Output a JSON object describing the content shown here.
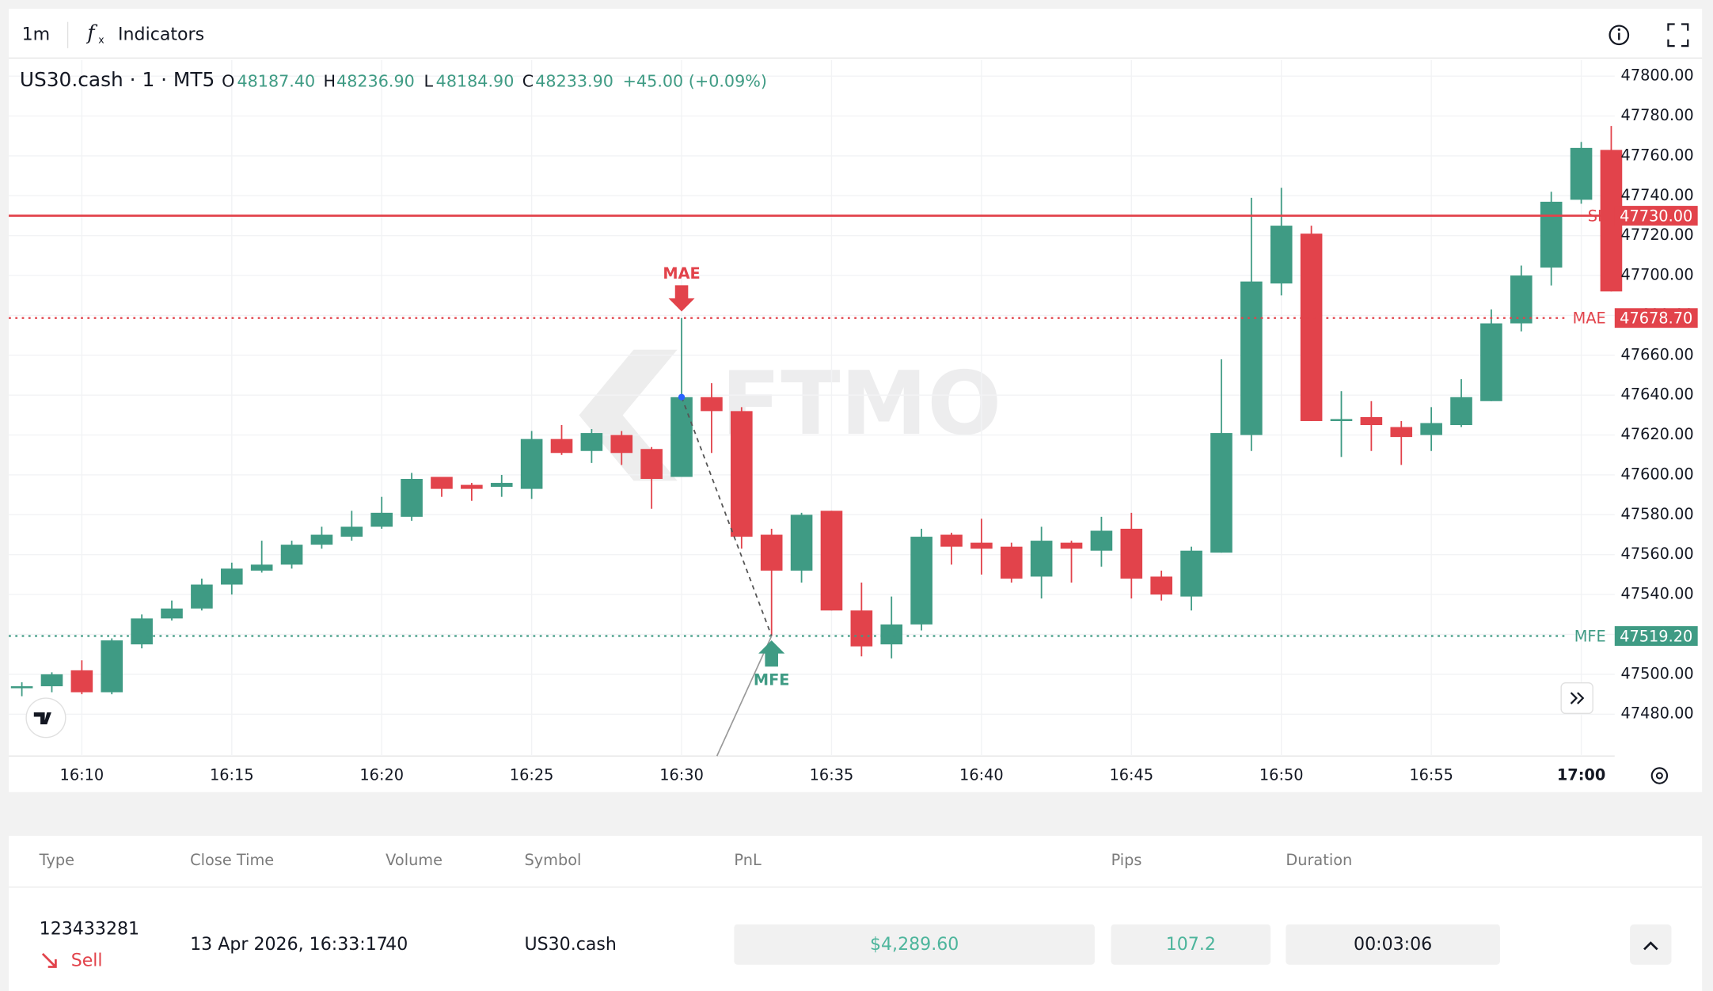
{
  "toolbar": {
    "interval": "1m",
    "indicators": "Indicators"
  },
  "legend": {
    "symbol": "US30.cash · 1 · MT5",
    "o_label": "O",
    "open": "48187.40",
    "h_label": "H",
    "high": "48236.90",
    "l_label": "L",
    "low": "48184.90",
    "c_label": "C",
    "close": "48233.90",
    "change": "+45.00 (+0.09%)"
  },
  "watermark": "FTMO",
  "chart_data": {
    "type": "candlestick",
    "categories": [
      null,
      null,
      "16:10",
      null,
      null,
      null,
      null,
      "16:15",
      null,
      null,
      null,
      null,
      "16:20",
      null,
      null,
      null,
      null,
      "16:25",
      null,
      null,
      null,
      null,
      "16:30",
      null,
      null,
      null,
      null,
      "16:35",
      null,
      null,
      null,
      null,
      "16:40",
      null,
      null,
      null,
      null,
      "16:45",
      null,
      null,
      null,
      null,
      "16:50",
      null,
      null,
      null,
      null,
      "16:55",
      null,
      null,
      null,
      null,
      "17:00",
      null
    ],
    "series": [
      {
        "up_color": "#3f9b84",
        "down_color": "#e2434b",
        "open": [
          47493,
          47494,
          47502,
          47491,
          47515,
          47528,
          47533,
          47545,
          47552,
          47555,
          47565,
          47569,
          47574,
          47579,
          47599,
          47595,
          47594,
          47593,
          47618,
          47612,
          47620,
          47613,
          47599,
          47639,
          47632,
          47570,
          47552,
          47582,
          47532,
          47515,
          47525,
          47570,
          47566,
          47564,
          47549,
          47566,
          47562,
          47573,
          47549,
          47539,
          47561,
          47620,
          47696,
          47721,
          47627,
          47629,
          47624,
          47620,
          47625,
          47637,
          47676,
          47704,
          47738,
          47763
        ],
        "high": [
          47496,
          47501,
          47507,
          47518,
          47530,
          47537,
          47548,
          47556,
          47567,
          47567,
          47574,
          47582,
          47589,
          47601,
          47599,
          47596,
          47600,
          47622,
          47625,
          47623,
          47622,
          47614,
          47678.7,
          47646,
          47634,
          47573,
          47581,
          47582,
          47546,
          47539,
          47573,
          47571,
          47578,
          47566,
          47574,
          47567,
          47579,
          47581,
          47552,
          47564,
          47658,
          47739,
          47744,
          47725,
          47642,
          47637,
          47627,
          47634,
          47648,
          47683,
          47705,
          47742,
          47767,
          47775
        ],
        "low": [
          47489,
          47491,
          47490,
          47490,
          47513,
          47527,
          47532,
          47540,
          47551,
          47553,
          47563,
          47567,
          47573,
          47577,
          47589,
          47587,
          47589,
          47588,
          47610,
          47606,
          47605,
          47583,
          47599,
          47611,
          47563,
          47519.2,
          47546,
          47532,
          47509,
          47508,
          47522,
          47555,
          47550,
          47546,
          47538,
          47546,
          47554,
          47538,
          47537,
          47532,
          47561,
          47612,
          47690,
          47627,
          47609,
          47612,
          47605,
          47612,
          47624,
          47637,
          47672,
          47695,
          47736,
          47692
        ],
        "close": [
          47494,
          47500,
          47491,
          47517,
          47528,
          47533,
          47545,
          47553,
          47555,
          47565,
          47570,
          47574,
          47581,
          47598,
          47593,
          47593,
          47596,
          47618,
          47611,
          47621,
          47611,
          47598,
          47639,
          47632,
          47569,
          47552,
          47580,
          47532,
          47514,
          47525,
          47569,
          47564,
          47563,
          47548,
          47567,
          47563,
          47572,
          47548,
          47540,
          47562,
          47621,
          47697,
          47725,
          47627,
          47628,
          47625,
          47619,
          47626,
          47639,
          47676,
          47700,
          47737,
          47764,
          47692
        ]
      }
    ],
    "ylim": [
      47459,
      47808
    ],
    "yticks": [
      {
        "value": 47480,
        "label": "47480.00"
      },
      {
        "value": 47500,
        "label": "47500.00"
      },
      {
        "value": 47520,
        "label": "47520.00"
      },
      {
        "value": 47540,
        "label": "47540.00"
      },
      {
        "value": 47560,
        "label": "47560.00"
      },
      {
        "value": 47580,
        "label": "47580.00"
      },
      {
        "value": 47600,
        "label": "47600.00"
      },
      {
        "value": 47620,
        "label": "47620.00"
      },
      {
        "value": 47640,
        "label": "47640.00"
      },
      {
        "value": 47660,
        "label": "47660.00"
      },
      {
        "value": 47680,
        "label": "47680.00"
      },
      {
        "value": 47700,
        "label": "47700.00"
      },
      {
        "value": 47720,
        "label": "47720.00"
      },
      {
        "value": 47740,
        "label": "47740.00"
      },
      {
        "value": 47760,
        "label": "47760.00"
      },
      {
        "value": 47780,
        "label": "47780.00"
      },
      {
        "value": 47800,
        "label": "47800.00"
      }
    ],
    "grid": true,
    "levels": [
      {
        "name": "SL",
        "value": 47730,
        "label": "47730.00",
        "color": "#e2434b",
        "style": "solid"
      },
      {
        "name": "MAE",
        "value": 47678.7,
        "label": "47678.70",
        "color": "#e2434b",
        "style": "dotted"
      },
      {
        "name": "MFE",
        "value": 47519.2,
        "label": "47519.20",
        "color": "#3f9b84",
        "style": "dotted"
      }
    ]
  },
  "table": {
    "headers": [
      "Type",
      "Close Time",
      "Volume",
      "Symbol",
      "PnL",
      "Pips",
      "Duration"
    ],
    "rows": [
      {
        "id": "123433281",
        "side": "Sell",
        "close_time": "13 Apr 2026, 16:33:17",
        "volume": "40",
        "symbol": "US30.cash",
        "pnl": "$4,289.60",
        "pips": "107.2",
        "duration": "00:03:06"
      }
    ]
  }
}
